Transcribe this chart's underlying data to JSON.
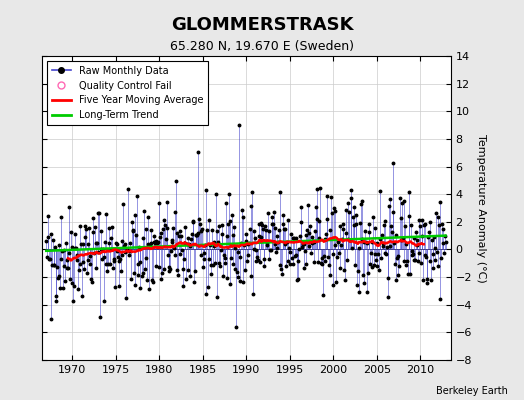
{
  "title": "GLOMMERSTRASK",
  "subtitle": "65.280 N, 19.670 E (Sweden)",
  "ylabel": "Temperature Anomaly (°C)",
  "credit": "Berkeley Earth",
  "ylim": [
    -8,
    14
  ],
  "xlim": [
    1966.5,
    2013.5
  ],
  "xticks": [
    1970,
    1975,
    1980,
    1985,
    1990,
    1995,
    2000,
    2005,
    2010
  ],
  "yticks": [
    -8,
    -6,
    -4,
    -2,
    0,
    2,
    4,
    6,
    8,
    10,
    12,
    14
  ],
  "bg_color": "#e8e8e8",
  "plot_bg_color": "#ffffff",
  "raw_line_color": "#4444cc",
  "raw_marker_color": "#000000",
  "moving_avg_color": "#ff0000",
  "trend_color": "#00cc00",
  "qc_fail_color": "#ff69b4",
  "seed": 42,
  "n_years": 46,
  "start_year": 1967,
  "months_per_year": 12,
  "title_fontsize": 13,
  "subtitle_fontsize": 9,
  "tick_labelsize": 8,
  "ylabel_fontsize": 8,
  "legend_fontsize": 7,
  "credit_fontsize": 7
}
